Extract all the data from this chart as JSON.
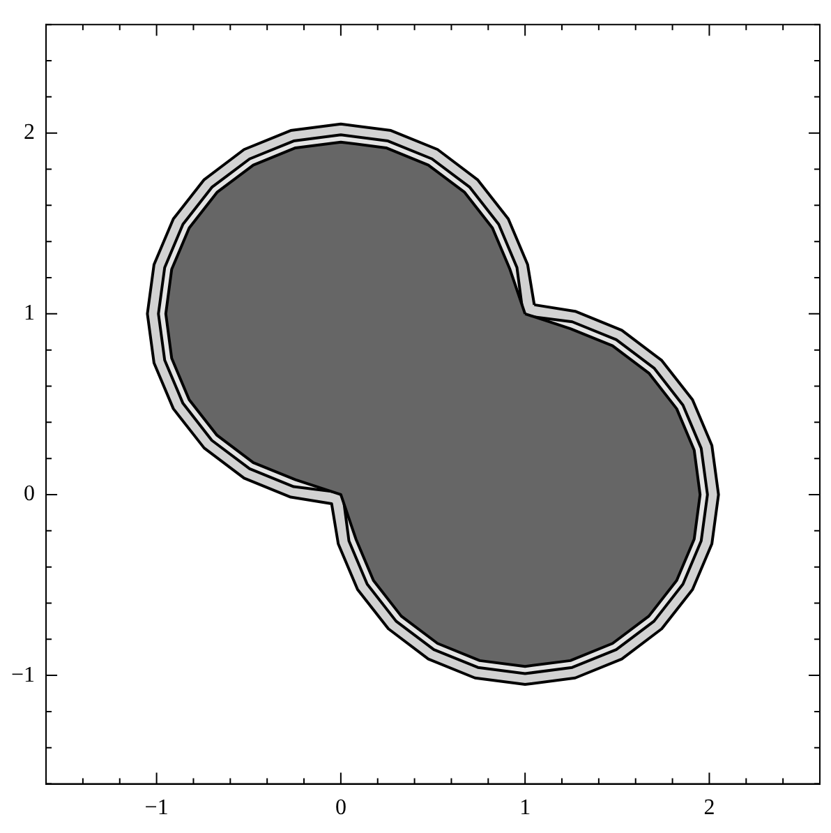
{
  "chart_data": {
    "type": "area",
    "xlim": [
      -1.6,
      2.6
    ],
    "ylim": [
      -1.6,
      2.6
    ],
    "xticks": [
      {
        "value": -1.6,
        "label": null
      },
      {
        "value": -1.4,
        "label": null
      },
      {
        "value": -1.2,
        "label": null
      },
      {
        "value": -1,
        "label": "−1"
      },
      {
        "value": -0.8,
        "label": null
      },
      {
        "value": -0.6,
        "label": null
      },
      {
        "value": -0.4,
        "label": null
      },
      {
        "value": -0.2,
        "label": null
      },
      0,
      {
        "value": 0.2,
        "label": null
      },
      {
        "value": 0.4,
        "label": null
      },
      {
        "value": 0.6,
        "label": null
      },
      {
        "value": 0.8,
        "label": null
      },
      1,
      {
        "value": 1.2,
        "label": null
      },
      {
        "value": 1.4,
        "label": null
      },
      {
        "value": 1.6,
        "label": null
      },
      {
        "value": 1.8,
        "label": null
      },
      2,
      {
        "value": 2.2,
        "label": null
      },
      {
        "value": 2.4,
        "label": null
      },
      {
        "value": 2.6,
        "label": null
      }
    ],
    "yticks": [
      {
        "value": -1.6,
        "label": null
      },
      {
        "value": -1.4,
        "label": null
      },
      {
        "value": -1.2,
        "label": null
      },
      {
        "value": -1,
        "label": "−1"
      },
      {
        "value": -0.8,
        "label": null
      },
      {
        "value": -0.6,
        "label": null
      },
      {
        "value": -0.4,
        "label": null
      },
      {
        "value": -0.2,
        "label": null
      },
      0,
      {
        "value": 0.2,
        "label": null
      },
      {
        "value": 0.4,
        "label": null
      },
      {
        "value": 0.6,
        "label": null
      },
      {
        "value": 0.8,
        "label": null
      },
      1,
      {
        "value": 1.2,
        "label": null
      },
      {
        "value": 1.4,
        "label": null
      },
      {
        "value": 1.6,
        "label": null
      },
      {
        "value": 1.8,
        "label": null
      },
      2,
      {
        "value": 2.2,
        "label": null
      },
      {
        "value": 2.4,
        "label": null
      },
      {
        "value": 2.6,
        "label": null
      }
    ],
    "grid": false,
    "legend": false,
    "marker": "none",
    "line_style": "solid",
    "series": [
      {
        "color": "#d2d2d2",
        "x": [
          1.05,
          1.014,
          0.909,
          0.742,
          0.525,
          0.272,
          0,
          -0.272,
          -0.525,
          -0.742,
          -0.909,
          -1.014,
          -1.05,
          -1.014,
          -0.909,
          -0.742,
          -0.525,
          -0.272,
          -0.05,
          -0.014,
          0.091,
          0.258,
          0.475,
          0.728,
          1,
          1.272,
          1.525,
          1.742,
          1.909,
          2.014,
          2.05,
          2.014,
          1.909,
          1.742,
          1.525,
          1.272
        ],
        "values": [
          1.05,
          1.272,
          1.525,
          1.742,
          1.909,
          2.014,
          2.05,
          2.014,
          1.909,
          1.742,
          1.525,
          1.272,
          1,
          0.728,
          0.475,
          0.258,
          0.091,
          -0.014,
          -0.05,
          -0.272,
          -0.525,
          -0.742,
          -0.909,
          -1.014,
          -1.05,
          -1.014,
          -0.909,
          -0.742,
          -0.525,
          -0.272,
          0,
          0.272,
          0.525,
          0.742,
          0.909,
          1.014
        ]
      },
      {
        "color": "#e4e4e4",
        "x": [
          0.99,
          0.956,
          0.857,
          0.7,
          0.495,
          0.256,
          0,
          -0.256,
          -0.495,
          -0.7,
          -0.857,
          -0.956,
          -0.99,
          -0.956,
          -0.857,
          -0.7,
          -0.495,
          -0.256,
          0.01,
          0.044,
          0.143,
          0.3,
          0.505,
          0.744,
          1,
          1.256,
          1.495,
          1.7,
          1.857,
          1.956,
          1.99,
          1.956,
          1.857,
          1.7,
          1.495,
          1.256
        ],
        "values": [
          0.99,
          1.256,
          1.495,
          1.7,
          1.857,
          1.956,
          1.99,
          1.956,
          1.857,
          1.7,
          1.495,
          1.256,
          1,
          0.744,
          0.505,
          0.3,
          0.143,
          0.044,
          0.01,
          -0.256,
          -0.495,
          -0.7,
          -0.857,
          -0.956,
          -0.99,
          -0.956,
          -0.857,
          -0.7,
          -0.495,
          -0.256,
          0,
          0.256,
          0.495,
          0.7,
          0.857,
          0.956
        ]
      },
      {
        "color": "#666666",
        "x": [
          1,
          0.918,
          0.823,
          0.672,
          0.475,
          0.246,
          0,
          -0.246,
          -0.475,
          -0.672,
          -0.823,
          -0.918,
          -0.95,
          -0.918,
          -0.823,
          -0.672,
          -0.475,
          -0.246,
          0,
          0.082,
          0.177,
          0.328,
          0.525,
          0.754,
          1,
          1.246,
          1.475,
          1.672,
          1.823,
          1.918,
          1.95,
          1.918,
          1.823,
          1.672,
          1.475,
          1.246
        ],
        "values": [
          1,
          1.246,
          1.475,
          1.672,
          1.823,
          1.918,
          1.95,
          1.918,
          1.823,
          1.672,
          1.475,
          1.246,
          1,
          0.754,
          0.525,
          0.328,
          0.177,
          0.082,
          0,
          -0.246,
          -0.475,
          -0.672,
          -0.823,
          -0.918,
          -0.95,
          -0.918,
          -0.823,
          -0.672,
          -0.475,
          -0.246,
          0,
          0.246,
          0.475,
          0.672,
          0.823,
          0.918
        ]
      }
    ]
  }
}
